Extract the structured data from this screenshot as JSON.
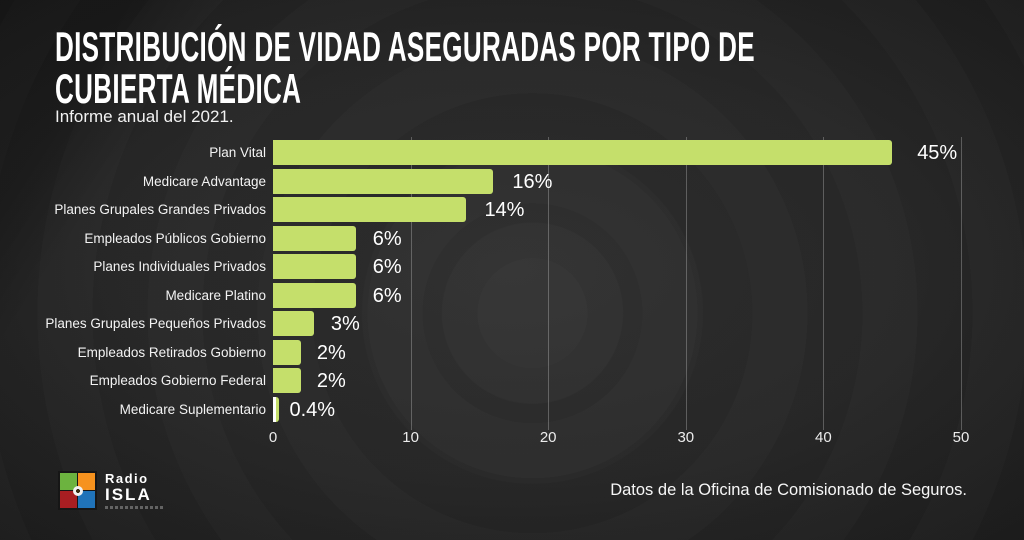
{
  "header": {
    "title_lines": [
      "DISTRIBUCIÓN DE VIDAD ASEGURADAS POR TIPO DE",
      "CUBIERTA MÉDICA"
    ],
    "subtitle": "Informe anual del 2021."
  },
  "chart_data": {
    "type": "bar",
    "orientation": "horizontal",
    "title": "Distribución de vidad aseguradas por tipo de cubierta médica",
    "subtitle": "Informe anual del 2021.",
    "categories": [
      "Plan Vital",
      "Medicare Advantage",
      "Planes Grupales Grandes Privados",
      "Empleados Públicos Gobierno",
      "Planes Individuales Privados",
      "Medicare Platino",
      "Planes Grupales Pequeños Privados",
      "Empleados Retirados Gobierno",
      "Empleados Gobierno Federal",
      "Medicare Suplementario"
    ],
    "values": [
      45,
      16,
      14,
      6,
      6,
      6,
      3,
      2,
      2,
      0.4
    ],
    "value_labels": [
      "45%",
      "16%",
      "14%",
      "6%",
      "6%",
      "6%",
      "3%",
      "2%",
      "2%",
      "0.4%"
    ],
    "xlim": [
      0,
      50
    ],
    "x_ticks": [
      0,
      10,
      20,
      30,
      40,
      50
    ],
    "grid": true,
    "legend": false,
    "bar_color": "#c5df6b"
  },
  "footer": {
    "source": "Datos de la Oficina de Comisionado de Seguros.",
    "logo": {
      "brand_top": "Radio",
      "brand_bottom": "ISLA"
    }
  },
  "colors": {
    "background": "#282828",
    "bar": "#c5df6b",
    "text": "#ffffff",
    "gridline": "#5f5f5f",
    "logo_green": "#6cb33f",
    "logo_orange": "#f6921e",
    "logo_red": "#a91e22",
    "logo_blue": "#2073b9"
  }
}
